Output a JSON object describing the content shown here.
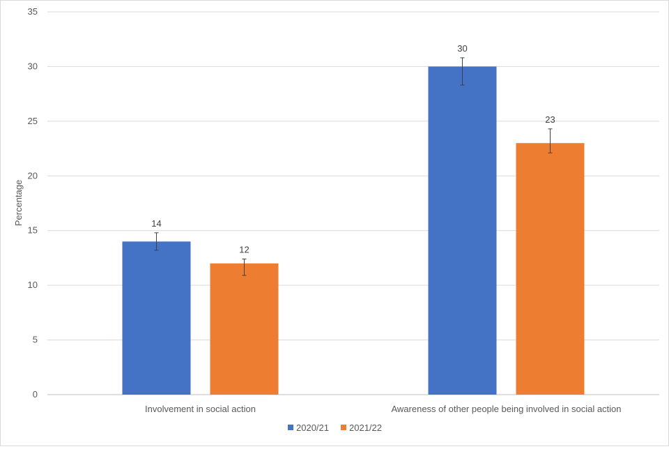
{
  "chart_data": {
    "type": "bar",
    "title": "",
    "xlabel": "",
    "ylabel": "Percentage",
    "ylim": [
      0,
      35
    ],
    "yticks": [
      0,
      5,
      10,
      15,
      20,
      25,
      30,
      35
    ],
    "grid": true,
    "legend_position": "bottom",
    "categories": [
      "Involvement in social action",
      "Awareness of other people being involved in social action"
    ],
    "series": [
      {
        "name": "2020/21",
        "color": "#4472c4",
        "values": [
          14,
          30
        ],
        "error_low": [
          13.2,
          28.3
        ],
        "error_high": [
          14.8,
          30.8
        ]
      },
      {
        "name": "2021/22",
        "color": "#ed7d31",
        "values": [
          12,
          23
        ],
        "error_low": [
          10.9,
          22.1
        ],
        "error_high": [
          12.4,
          24.3
        ]
      }
    ]
  }
}
